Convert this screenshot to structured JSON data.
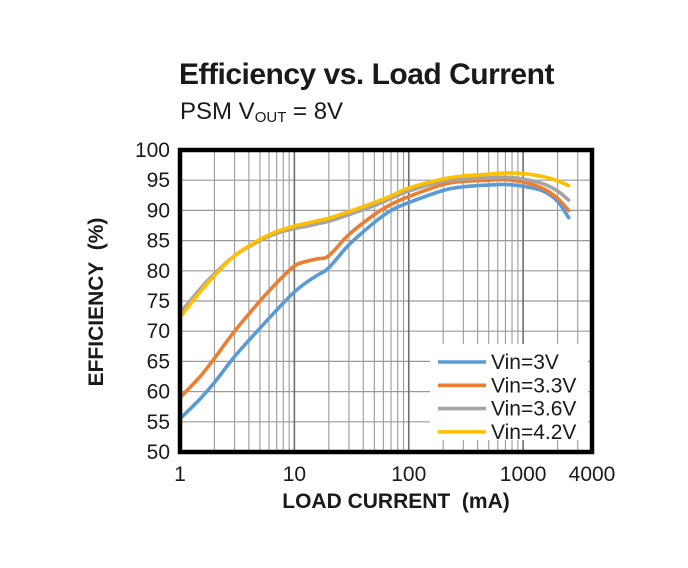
{
  "figure": {
    "title": "Efficiency vs. Load Current",
    "subtitle_prefix": "PSM V",
    "subtitle_sub": "OUT",
    "subtitle_suffix": " = 8V"
  },
  "chart_data": {
    "type": "line",
    "title": "Efficiency vs. Load Current",
    "subtitle": "PSM VOUT = 8V",
    "xlabel": "LOAD CURRENT  (mA)",
    "ylabel": "EFFICIENCY  (%)",
    "x_scale": "log",
    "xlim": [
      1,
      4000
    ],
    "ylim": [
      50,
      100
    ],
    "x_ticks": [
      1,
      10,
      100,
      1000,
      4000
    ],
    "y_ticks": [
      100,
      95,
      90,
      85,
      80,
      75,
      70,
      65,
      60,
      55,
      50
    ],
    "grid": true,
    "legend_position": "inside-lower-right",
    "colors": {
      "axis": "#000000",
      "grid_minor": "#9a9a9a",
      "grid_major": "#6e6e6e",
      "text": "#1a1a1a"
    },
    "series": [
      {
        "name": "Vin=3V",
        "color": "#5B9BD5",
        "points": [
          [
            1,
            55.5
          ],
          [
            1.5,
            58.8
          ],
          [
            2,
            61.5
          ],
          [
            3,
            65.8
          ],
          [
            5,
            70.5
          ],
          [
            7,
            73.5
          ],
          [
            10,
            76.5
          ],
          [
            13,
            78.2
          ],
          [
            16,
            79.3
          ],
          [
            20,
            80.5
          ],
          [
            30,
            84.3
          ],
          [
            50,
            88
          ],
          [
            70,
            90
          ],
          [
            100,
            91.3
          ],
          [
            200,
            93.3
          ],
          [
            300,
            93.9
          ],
          [
            500,
            94.2
          ],
          [
            700,
            94.3
          ],
          [
            1000,
            94
          ],
          [
            1500,
            93.2
          ],
          [
            2000,
            91.5
          ],
          [
            2500,
            88.8
          ]
        ]
      },
      {
        "name": "Vin=3.3V",
        "color": "#ED7D31",
        "points": [
          [
            1,
            59
          ],
          [
            1.5,
            62.5
          ],
          [
            2,
            65.5
          ],
          [
            3,
            70
          ],
          [
            5,
            75
          ],
          [
            7,
            78
          ],
          [
            10,
            80.8
          ],
          [
            13,
            81.6
          ],
          [
            16,
            82
          ],
          [
            20,
            82.5
          ],
          [
            30,
            86
          ],
          [
            50,
            89.3
          ],
          [
            70,
            91
          ],
          [
            100,
            92.3
          ],
          [
            200,
            94.3
          ],
          [
            300,
            94.8
          ],
          [
            500,
            95
          ],
          [
            700,
            95.1
          ],
          [
            1000,
            94.7
          ],
          [
            1500,
            93.6
          ],
          [
            2000,
            92
          ],
          [
            2500,
            90
          ]
        ]
      },
      {
        "name": "Vin=3.6V",
        "color": "#A5A5A5",
        "points": [
          [
            1,
            73
          ],
          [
            1.5,
            77
          ],
          [
            2,
            79.5
          ],
          [
            3,
            82.5
          ],
          [
            5,
            85
          ],
          [
            7,
            86.2
          ],
          [
            10,
            87
          ],
          [
            13,
            87.4
          ],
          [
            16,
            87.8
          ],
          [
            20,
            88.2
          ],
          [
            30,
            89.3
          ],
          [
            50,
            90.8
          ],
          [
            70,
            92
          ],
          [
            100,
            93.2
          ],
          [
            200,
            94.8
          ],
          [
            300,
            95.2
          ],
          [
            500,
            95.4
          ],
          [
            700,
            95.5
          ],
          [
            1000,
            95.2
          ],
          [
            1500,
            94.4
          ],
          [
            2000,
            93.2
          ],
          [
            2500,
            91.7
          ]
        ]
      },
      {
        "name": "Vin=4.2V",
        "color": "#FFC000",
        "points": [
          [
            1,
            72.3
          ],
          [
            1.5,
            76.5
          ],
          [
            2,
            79.2
          ],
          [
            3,
            82.5
          ],
          [
            5,
            85.2
          ],
          [
            7,
            86.5
          ],
          [
            10,
            87.4
          ],
          [
            13,
            87.9
          ],
          [
            16,
            88.3
          ],
          [
            20,
            88.7
          ],
          [
            30,
            89.8
          ],
          [
            50,
            91.3
          ],
          [
            70,
            92.4
          ],
          [
            100,
            93.7
          ],
          [
            200,
            95.2
          ],
          [
            300,
            95.7
          ],
          [
            500,
            96
          ],
          [
            700,
            96.2
          ],
          [
            1000,
            96.1
          ],
          [
            1500,
            95.6
          ],
          [
            2000,
            94.9
          ],
          [
            2500,
            94.1
          ]
        ]
      }
    ]
  }
}
